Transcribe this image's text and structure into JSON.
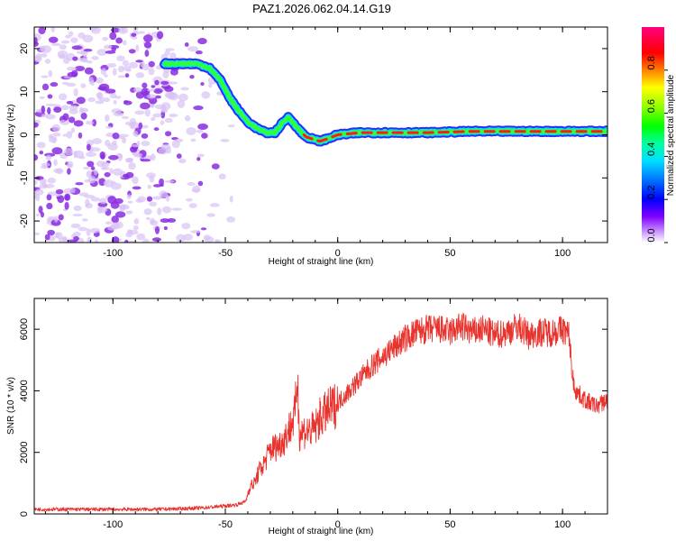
{
  "title": "PAZ1.2026.062.04.14.G19",
  "colors": {
    "snr_line": "#e8332e",
    "ridge_outer": "#2b2bff",
    "ridge_mid": "#00e5e5",
    "ridge_inner": "#33ff33",
    "ridge_peak": "#ff1a1a",
    "noise": "#8a2be2",
    "noise_light": "#d9c2f5"
  },
  "chart_data": [
    {
      "type": "heatmap",
      "name": "spectrogram",
      "xlabel": "Height of straight line (km)",
      "ylabel": "Frequency (Hz)",
      "xlim": [
        -135,
        120
      ],
      "ylim": [
        -25,
        25
      ],
      "xticks": [
        -100,
        -50,
        0,
        50,
        100
      ],
      "yticks": [
        -20,
        -10,
        0,
        10,
        20
      ],
      "ridge": {
        "x": [
          -77,
          -70,
          -63,
          -57,
          -52,
          -48,
          -44,
          -40,
          -36,
          -32,
          -28,
          -25,
          -22,
          -20,
          -17,
          -14,
          -11,
          -8,
          -5,
          0,
          10,
          20,
          40,
          60,
          80,
          100,
          120
        ],
        "y": [
          16.5,
          16.5,
          16.5,
          15.5,
          12.5,
          8.5,
          5.5,
          3,
          1.5,
          0.5,
          0.5,
          2.5,
          4,
          3,
          1,
          -0.5,
          -1,
          -1.5,
          -1,
          0,
          0.5,
          0.5,
          0.5,
          0.8,
          0.8,
          0.8,
          0.8
        ]
      },
      "colorbar": {
        "label": "Normalized spectral amplitude",
        "range": [
          0,
          1
        ],
        "ticks": [
          "0.0",
          "0.2",
          "0.4",
          "0.6",
          "0.8"
        ]
      }
    },
    {
      "type": "line",
      "name": "snr",
      "xlabel": "Height of straight line (km)",
      "ylabel": "SNR (10 * v/v)",
      "xlim": [
        -135,
        120
      ],
      "ylim": [
        0,
        7000
      ],
      "xticks": [
        -100,
        -50,
        0,
        50,
        100
      ],
      "yticks": [
        0,
        2000,
        4000,
        6000
      ],
      "series": [
        {
          "name": "SNR",
          "x": [
            -135,
            -80,
            -70,
            -60,
            -55,
            -50,
            -45,
            -41,
            -39,
            -37,
            -35,
            -33,
            -30,
            -27,
            -24,
            -22,
            -19,
            -18,
            -17,
            -15,
            -12,
            -10,
            -8,
            -5,
            0,
            5,
            10,
            15,
            20,
            25,
            30,
            35,
            40,
            45,
            50,
            55,
            60,
            65,
            70,
            75,
            80,
            85,
            90,
            95,
            100,
            103,
            104,
            105,
            106,
            107,
            110,
            115,
            120
          ],
          "values": [
            150,
            150,
            170,
            200,
            230,
            260,
            300,
            400,
            900,
            1000,
            1400,
            1600,
            2100,
            2200,
            2400,
            2700,
            3200,
            4500,
            2600,
            2700,
            2700,
            2800,
            3100,
            3300,
            3600,
            4000,
            4400,
            4800,
            5100,
            5400,
            5700,
            5900,
            6000,
            6000,
            5900,
            6100,
            5900,
            6000,
            5800,
            5900,
            6100,
            5800,
            5900,
            5900,
            6000,
            5800,
            4800,
            4200,
            4000,
            3900,
            3700,
            3500,
            3700
          ]
        }
      ]
    }
  ]
}
